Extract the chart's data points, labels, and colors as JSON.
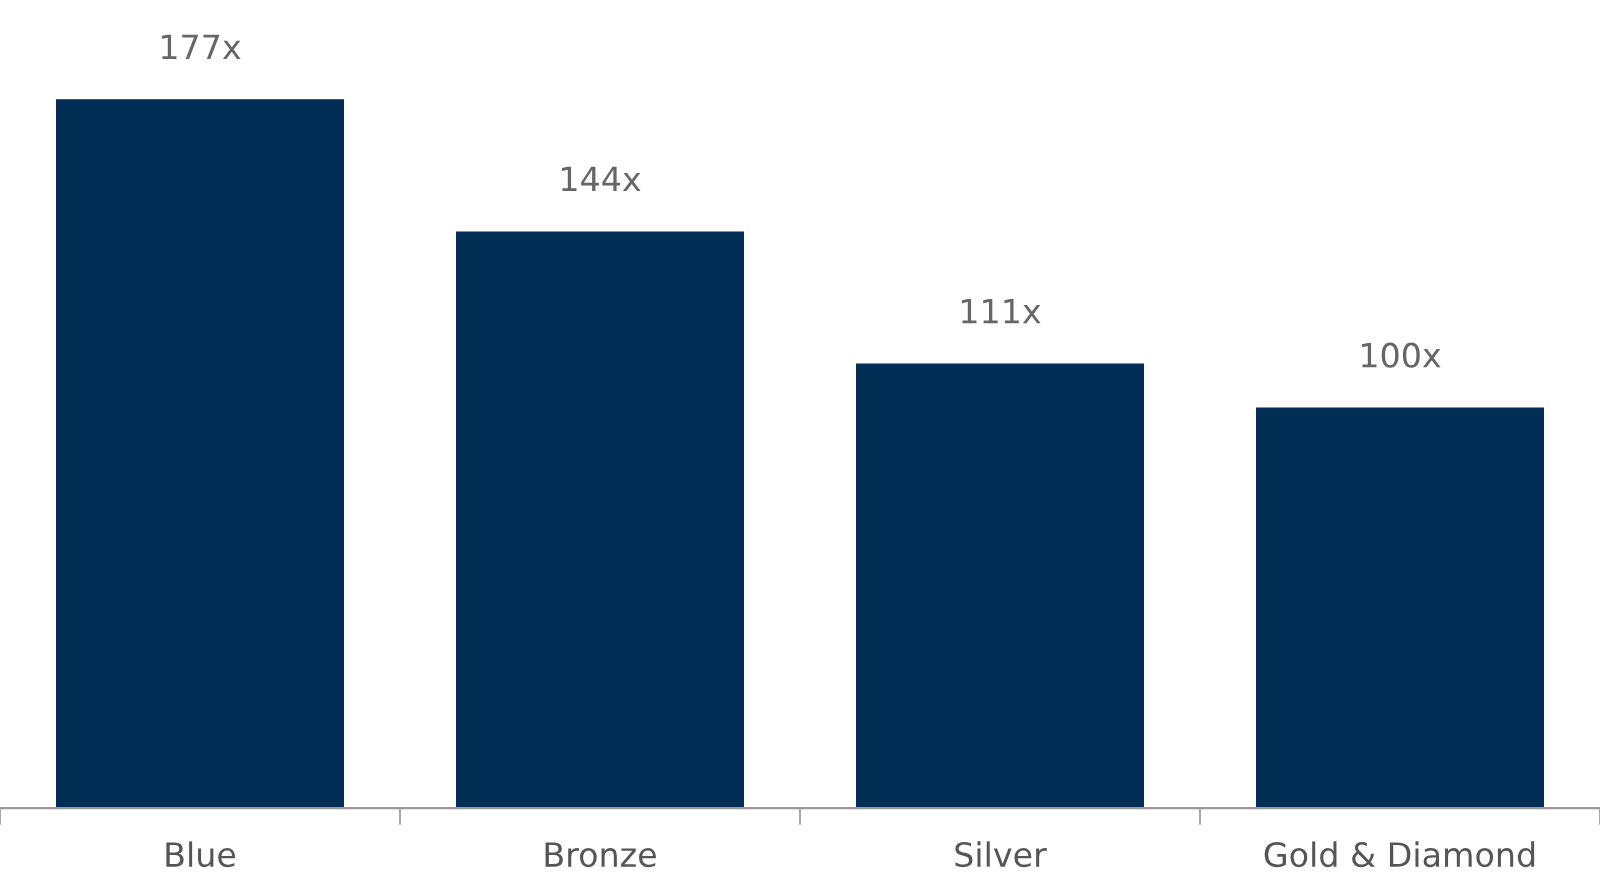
{
  "chart_data": {
    "type": "bar",
    "categories": [
      "Blue",
      "Bronze",
      "Silver",
      "Gold & Diamond"
    ],
    "values": [
      177,
      144,
      111,
      100
    ],
    "value_labels": [
      "177x",
      "144x",
      "111x",
      "100x"
    ],
    "color": "#022d55",
    "grid": false,
    "legend": false
  }
}
